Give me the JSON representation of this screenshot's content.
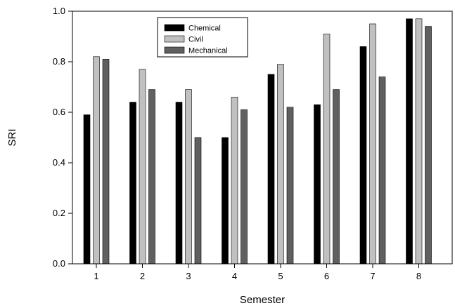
{
  "chart_data": {
    "type": "bar",
    "title": "",
    "xlabel": "Semester",
    "ylabel": "SRI",
    "categories": [
      "1",
      "2",
      "3",
      "4",
      "5",
      "6",
      "7",
      "8"
    ],
    "ylim": [
      0,
      1.0
    ],
    "yticks": [
      "0.0",
      "0.2",
      "0.4",
      "0.6",
      "0.8",
      "1.0"
    ],
    "grid": false,
    "legend_position": "top-center",
    "series": [
      {
        "name": "Chemical",
        "color": "#000000",
        "values": [
          0.59,
          0.64,
          0.64,
          0.5,
          0.75,
          0.63,
          0.86,
          0.97
        ]
      },
      {
        "name": "Civil",
        "color": "#c0c0c0",
        "values": [
          0.82,
          0.77,
          0.69,
          0.66,
          0.79,
          0.91,
          0.95,
          0.97
        ]
      },
      {
        "name": "Mechanical",
        "color": "#606060",
        "values": [
          0.81,
          0.69,
          0.5,
          0.61,
          0.62,
          0.69,
          0.74,
          0.94
        ]
      }
    ]
  }
}
